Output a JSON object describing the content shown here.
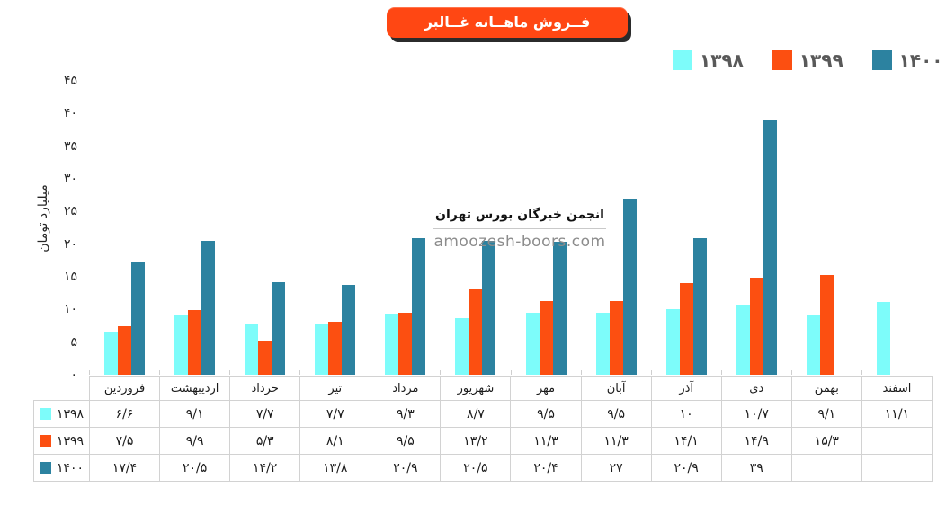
{
  "title": {
    "text": "فــروش ماهــانه غــالبر",
    "bg_color": "#ff4713",
    "shadow_color": "#202020"
  },
  "watermark": {
    "line1": "انجمن خبرگان بورس تهران",
    "line2": "amoozesh-boors.com"
  },
  "y_axis": {
    "label": "میلیارد تومان",
    "ticks": [
      {
        "v": 0,
        "label": "۰"
      },
      {
        "v": 5,
        "label": "۵"
      },
      {
        "v": 10,
        "label": "۱۰"
      },
      {
        "v": 15,
        "label": "۱۵"
      },
      {
        "v": 20,
        "label": "۲۰"
      },
      {
        "v": 25,
        "label": "۲۵"
      },
      {
        "v": 30,
        "label": "۳۰"
      },
      {
        "v": 35,
        "label": "۳۵"
      },
      {
        "v": 40,
        "label": "۴۰"
      },
      {
        "v": 45,
        "label": "۴۵"
      }
    ]
  },
  "chart_data": {
    "type": "bar",
    "title": "فــروش ماهــانه غــالبر",
    "xlabel": "",
    "ylabel": "میلیارد تومان",
    "ylim": [
      0,
      45
    ],
    "ytick_step": 5,
    "grid": false,
    "legend_position": "top-right",
    "categories": [
      "فروردین",
      "اردیبهشت",
      "خرداد",
      "تیر",
      "مرداد",
      "شهریور",
      "مهر",
      "آبان",
      "آذر",
      "دی",
      "بهمن",
      "اسفند"
    ],
    "series": [
      {
        "name": "۱۳۹۸",
        "color": "#7dfcfa",
        "values": [
          6.6,
          9.1,
          7.7,
          7.7,
          9.3,
          8.7,
          9.5,
          9.5,
          10,
          10.7,
          9.1,
          11.1
        ],
        "display": [
          "۶/۶",
          "۹/۱",
          "۷/۷",
          "۷/۷",
          "۹/۳",
          "۸/۷",
          "۹/۵",
          "۹/۵",
          "۱۰",
          "۱۰/۷",
          "۹/۱",
          "۱۱/۱"
        ]
      },
      {
        "name": "۱۳۹۹",
        "color": "#fc4f11",
        "values": [
          7.5,
          9.9,
          5.3,
          8.1,
          9.5,
          13.2,
          11.3,
          11.3,
          14.1,
          14.9,
          15.3,
          null
        ],
        "display": [
          "۷/۵",
          "۹/۹",
          "۵/۳",
          "۸/۱",
          "۹/۵",
          "۱۳/۲",
          "۱۱/۳",
          "۱۱/۳",
          "۱۴/۱",
          "۱۴/۹",
          "۱۵/۳",
          ""
        ]
      },
      {
        "name": "۱۴۰۰",
        "color": "#2c82a0",
        "values": [
          17.4,
          20.5,
          14.2,
          13.8,
          20.9,
          20.5,
          20.4,
          27,
          20.9,
          39,
          null,
          null
        ],
        "display": [
          "۱۷/۴",
          "۲۰/۵",
          "۱۴/۲",
          "۱۳/۸",
          "۲۰/۹",
          "۲۰/۵",
          "۲۰/۴",
          "۲۷",
          "۲۰/۹",
          "۳۹",
          "",
          ""
        ]
      }
    ]
  }
}
